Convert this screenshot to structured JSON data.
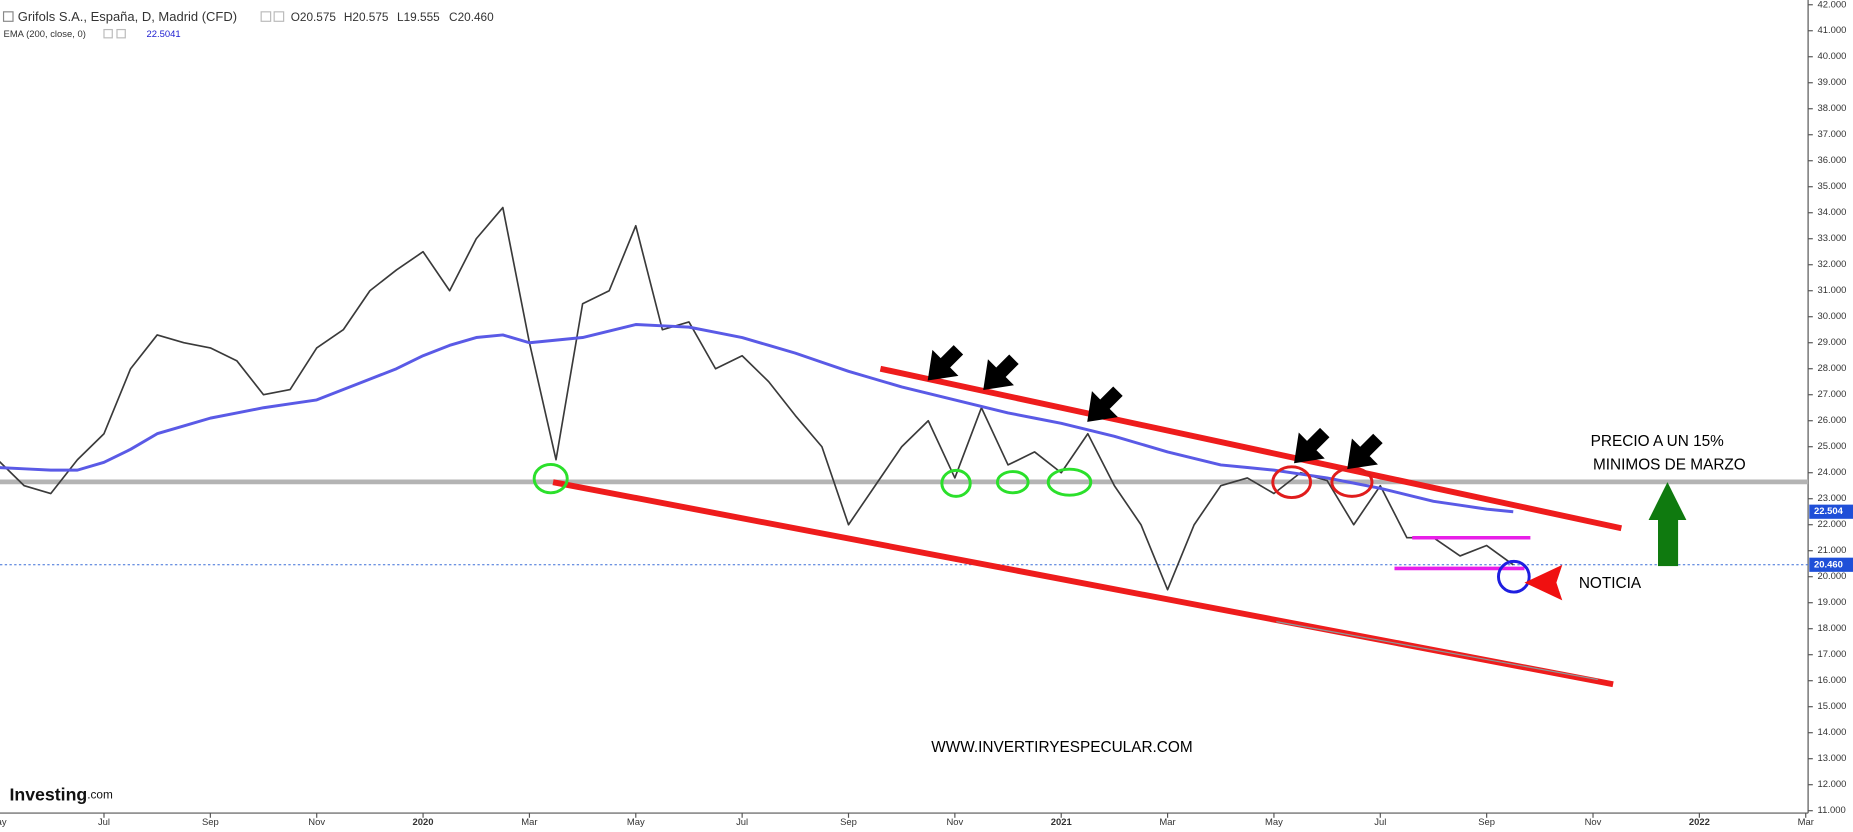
{
  "chart_data": {
    "type": "line",
    "title": "Grifols S.A., España, D, Madrid (CFD)",
    "ohlc_labels": [
      "O20.575",
      "H20.575",
      "L19.555",
      "C20.460"
    ],
    "indicator_label": "EMA (200, close, 0)",
    "indicator_value": "22.5041",
    "categories": [
      "May",
      null,
      null,
      null,
      "Jul",
      null,
      null,
      null,
      "Sep",
      null,
      null,
      null,
      "Nov",
      null,
      null,
      null,
      "2020",
      null,
      null,
      null,
      "Mar",
      null,
      null,
      null,
      "May",
      null,
      null,
      null,
      "Jul",
      null,
      null,
      null,
      "Sep",
      null,
      null,
      null,
      "Nov",
      null,
      null,
      null,
      "2021",
      null,
      null,
      null,
      "Mar",
      null,
      null,
      null,
      "May",
      null,
      null,
      null,
      "Jul",
      null,
      null,
      null,
      "Sep",
      null,
      null,
      null,
      "Nov",
      null,
      null,
      null,
      "2022",
      null,
      null,
      null,
      "Mar"
    ],
    "series": [
      {
        "name": "Grifols S.A.",
        "color": "#3a3a3a",
        "tag": "20.460",
        "tag_color": "#1f4fd8",
        "values": [
          24.5,
          23.5,
          23.2,
          24.5,
          25.5,
          28,
          29.3,
          29,
          28.8,
          28.3,
          27,
          27.2,
          28.8,
          29.5,
          31,
          31.8,
          32.5,
          31,
          33,
          34.2,
          29,
          24.5,
          30.5,
          31,
          33.5,
          29.5,
          29.8,
          28,
          28.5,
          27.5,
          26.2,
          25,
          22,
          23.5,
          25,
          26,
          23.8,
          26.5,
          24.3,
          24.8,
          24,
          25.5,
          23.5,
          22,
          19.5,
          22,
          23.5,
          23.8,
          23.2,
          24,
          23.7,
          22,
          23.5,
          21.5,
          21.5,
          20.8,
          21.2,
          20.46,
          null,
          null,
          null,
          null,
          null,
          null,
          null,
          null,
          null,
          null,
          null
        ]
      },
      {
        "name": "EMA (200, close, 0)",
        "color": "#5a5ae6",
        "tag": "22.504",
        "tag_color": "#1f4fd8",
        "values": [
          24.2,
          24.15,
          24.1,
          24.1,
          24.4,
          24.9,
          25.5,
          25.8,
          26.1,
          26.3,
          26.5,
          26.65,
          26.8,
          27.2,
          27.6,
          28,
          28.5,
          28.9,
          29.2,
          29.3,
          29,
          29.1,
          29.2,
          29.45,
          29.7,
          29.65,
          29.6,
          29.4,
          29.2,
          28.9,
          28.6,
          28.25,
          27.9,
          27.6,
          27.3,
          27.05,
          26.8,
          26.55,
          26.3,
          26.1,
          25.9,
          25.65,
          25.4,
          25.1,
          24.8,
          24.55,
          24.3,
          24.2,
          24.1,
          23.95,
          23.8,
          23.6,
          23.4,
          23.15,
          22.9,
          22.75,
          22.6,
          22.5,
          null,
          null,
          null,
          null,
          null,
          null,
          null,
          null,
          null,
          null,
          null
        ]
      }
    ],
    "hlines": [
      {
        "value": 23.65,
        "color": "#b4b4b4"
      },
      {
        "value": 20.46,
        "color": "#3c6fd8"
      }
    ],
    "ylim": [
      11,
      42
    ],
    "yticks": [
      {
        "value": 11,
        "label": "11.000"
      },
      {
        "value": 12,
        "label": "12.000"
      },
      {
        "value": 13,
        "label": "13.000"
      },
      {
        "value": 14,
        "label": "14.000"
      },
      {
        "value": 15,
        "label": "15.000"
      },
      {
        "value": 16,
        "label": "16.000"
      },
      {
        "value": 17,
        "label": "17.000"
      },
      {
        "value": 18,
        "label": "18.000"
      },
      {
        "value": 19,
        "label": "19.000"
      },
      {
        "value": 20,
        "label": "20.000"
      },
      {
        "value": 21,
        "label": "21.000"
      },
      {
        "value": 22,
        "label": "22.000"
      },
      {
        "value": 23,
        "label": "23.000"
      },
      {
        "value": 24,
        "label": "24.000"
      },
      {
        "value": 25,
        "label": "25.000"
      },
      {
        "value": 26,
        "label": "26.000"
      },
      {
        "value": 27,
        "label": "27.000"
      },
      {
        "value": 28,
        "label": "28.000"
      },
      {
        "value": 29,
        "label": "29.000"
      },
      {
        "value": 30,
        "label": "30.000"
      },
      {
        "value": 31,
        "label": "31.000"
      },
      {
        "value": 32,
        "label": "32.000"
      },
      {
        "value": 33,
        "label": "33.000"
      },
      {
        "value": 34,
        "label": "34.000"
      },
      {
        "value": 35,
        "label": "35.000"
      },
      {
        "value": 36,
        "label": "36.000"
      },
      {
        "value": 37,
        "label": "37.000"
      },
      {
        "value": 38,
        "label": "38.000"
      },
      {
        "value": 39,
        "label": "39.000"
      },
      {
        "value": 40,
        "label": "40.000"
      },
      {
        "value": 41,
        "label": "41.000"
      },
      {
        "value": 42,
        "label": "42.000"
      }
    ],
    "annotations": {
      "note1": "PRECIO A UN 15%",
      "note2": "MINIMOS DE MARZO",
      "news": "NOTICIA",
      "website": "WWW.INVERTIRYESPECULAR.COM",
      "brand": "Investing",
      "brand_suffix": ".com"
    }
  }
}
